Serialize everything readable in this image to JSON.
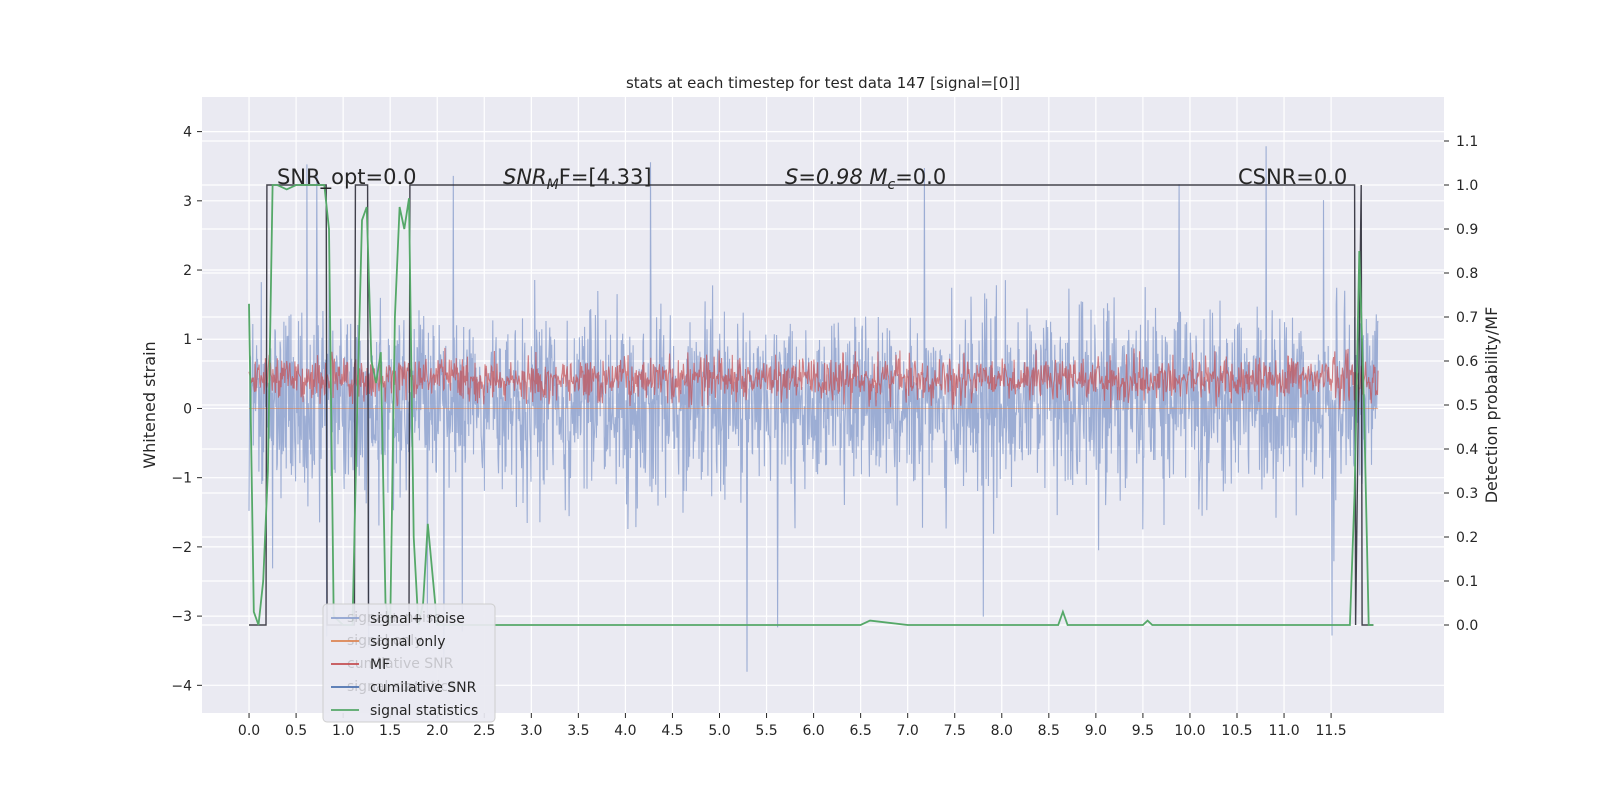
{
  "chart_data": {
    "type": "line",
    "title": "stats at each timestep for test data 147 [signal=[0]]",
    "xlabel": "",
    "ylabel": "Whitened strain",
    "ylabel_right": "Detection probability/MF",
    "xlim": [
      -0.5,
      12.7
    ],
    "ylim": [
      -4.4,
      4.5
    ],
    "ylim_right": [
      -0.2,
      1.2
    ],
    "xticks": [
      0.0,
      0.5,
      1.0,
      1.5,
      2.0,
      2.5,
      3.0,
      3.5,
      4.0,
      4.5,
      5.0,
      5.5,
      6.0,
      6.5,
      7.0,
      7.5,
      8.0,
      8.5,
      9.0,
      9.5,
      10.0,
      10.5,
      11.0,
      11.5
    ],
    "xtick_labels": [
      "0.0",
      "0.5",
      "1.0",
      "1.5",
      "2.0",
      "2.5",
      "3.0",
      "3.5",
      "4.0",
      "4.5",
      "5.0",
      "5.5",
      "6.0",
      "6.5",
      "7.0",
      "7.5",
      "8.0",
      "8.5",
      "9.0",
      "9.5",
      "10.0",
      "10.5",
      "11.0",
      "11.5"
    ],
    "yticks": [
      -4,
      -3,
      -2,
      -1,
      0,
      1,
      2,
      3,
      4
    ],
    "ytick_labels": [
      "−4",
      "−3",
      "−2",
      "−1",
      "0",
      "1",
      "2",
      "3",
      "4"
    ],
    "yticks_right": [
      0.0,
      0.1,
      0.2,
      0.3,
      0.4,
      0.5,
      0.6,
      0.7,
      0.8,
      0.9,
      1.0,
      1.1
    ],
    "ytick_labels_right": [
      "0.0",
      "0.1",
      "0.2",
      "0.3",
      "0.4",
      "0.5",
      "0.6",
      "0.7",
      "0.8",
      "0.9",
      "1.0",
      "1.1"
    ],
    "grid": true,
    "legend_placement": "lower-left",
    "annotations": [
      {
        "label": "SNR_opt=0.0"
      },
      {
        "label": "SNR",
        "sub": "M",
        "suffix": "F=[4.33]"
      },
      {
        "label": "S=0.98   M",
        "sub": "c",
        "suffix": "=0.0"
      },
      {
        "label": "CSNR=0.0"
      }
    ],
    "series": [
      {
        "name": "signal+ noise",
        "color": "#8ea2cf",
        "axis": "left",
        "description": "dense noisy strain, roughly -2 to +2.5 with spikes to about +/-3.8",
        "x_range": [
          0.0,
          12.0
        ],
        "envelope_low": -2.0,
        "envelope_high": 2.3
      },
      {
        "name": "signal only",
        "color": "#dd8452",
        "axis": "left",
        "description": "flat at zero",
        "values_const": 0.0
      },
      {
        "name": "MF",
        "color": "#c44e52",
        "axis": "right",
        "description": "matched filter output, noisy band about 0.5 to 0.65",
        "x_range": [
          0.0,
          12.0
        ],
        "envelope_low": 0.5,
        "envelope_high": 0.65
      },
      {
        "name": "cumilative SNR",
        "color": "#4c72b0",
        "axis": "right",
        "description": "step spikes between 0 and 1",
        "x": [
          0.0,
          0.18,
          0.19,
          0.82,
          0.83,
          1.12,
          1.13,
          1.26,
          1.27,
          1.7,
          1.71,
          11.75,
          11.76,
          11.82,
          11.83,
          11.95
        ],
        "y": [
          0.0,
          0.0,
          1.0,
          1.0,
          0.0,
          0.0,
          1.0,
          1.0,
          0.0,
          0.0,
          1.0,
          1.0,
          0.0,
          1.0,
          0.0,
          0.0
        ]
      },
      {
        "name": "signal statistics",
        "color": "#55a868",
        "axis": "right",
        "description": "detection probability over time",
        "x": [
          0.0,
          0.05,
          0.1,
          0.15,
          0.2,
          0.25,
          0.3,
          0.4,
          0.5,
          0.6,
          0.7,
          0.8,
          0.85,
          0.9,
          1.0,
          1.1,
          1.15,
          1.2,
          1.25,
          1.3,
          1.35,
          1.4,
          1.45,
          1.5,
          1.55,
          1.6,
          1.65,
          1.7,
          1.75,
          1.8,
          1.85,
          1.9,
          2.0,
          2.5,
          3.0,
          3.5,
          4.0,
          4.5,
          5.0,
          5.5,
          6.0,
          6.5,
          6.6,
          7.0,
          7.5,
          8.0,
          8.5,
          8.6,
          8.65,
          8.7,
          8.75,
          9.0,
          9.5,
          9.55,
          9.6,
          10.0,
          10.5,
          11.0,
          11.3,
          11.6,
          11.7,
          11.75,
          11.8,
          11.85,
          11.9,
          11.95
        ],
        "y": [
          0.73,
          0.03,
          0.0,
          0.1,
          0.35,
          1.0,
          1.0,
          0.99,
          1.0,
          1.0,
          1.0,
          1.0,
          0.9,
          0.02,
          0.0,
          0.0,
          0.5,
          0.92,
          0.95,
          0.6,
          0.55,
          0.62,
          0.05,
          0.0,
          0.7,
          0.95,
          0.9,
          0.97,
          0.2,
          0.0,
          0.05,
          0.23,
          0.0,
          0.0,
          0.0,
          0.0,
          0.0,
          0.0,
          0.0,
          0.0,
          0.0,
          0.0,
          0.01,
          0.0,
          0.0,
          0.0,
          0.0,
          0.0,
          0.03,
          0.0,
          0.0,
          0.0,
          0.0,
          0.01,
          0.0,
          0.0,
          0.0,
          0.0,
          0.0,
          0.0,
          0.0,
          0.3,
          0.85,
          0.5,
          0.0,
          0.0
        ]
      }
    ]
  },
  "legend": {
    "items": [
      {
        "label": "signal+ noise",
        "color": "#8ea2cf"
      },
      {
        "label": "signal only",
        "color": "#dd8452"
      },
      {
        "label": "MF",
        "color": "#c44e52"
      },
      {
        "label": "cumilative SNR",
        "color": "#4c72b0"
      },
      {
        "label": "signal statistics",
        "color": "#55a868"
      }
    ],
    "ghost_items": [
      "signal+ noise",
      "signal only",
      "cumilative SNR",
      "signal statistics"
    ]
  },
  "colors": {
    "plot_background": "#eaeaf2",
    "grid": "#ffffff"
  }
}
